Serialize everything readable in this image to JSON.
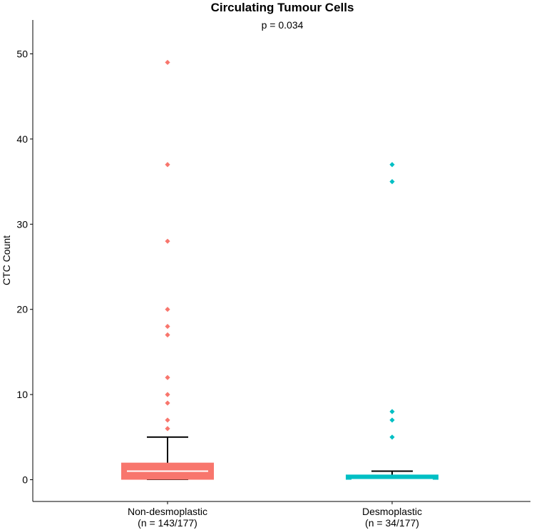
{
  "chart_data": {
    "type": "boxplot",
    "title": "Circulating Tumour Cells",
    "subtitle": "p =  0.034",
    "xlabel": "",
    "ylabel": "CTC Count",
    "ylim": [
      -2.5,
      54
    ],
    "yticks": [
      0,
      10,
      20,
      30,
      40,
      50
    ],
    "yticks_labels": [
      "0",
      "10",
      "20",
      "30",
      "40",
      "50"
    ],
    "categories": [
      {
        "name": "Non-desmoplastic",
        "sub": "(n = 143/177)"
      },
      {
        "name": "Desmoplastic",
        "sub": "(n = 34/177)"
      }
    ],
    "series": [
      {
        "name": "Non-desmoplastic",
        "color": "#F8766D",
        "whisker_low": 0,
        "q1": 0,
        "median": 1,
        "q3": 2,
        "whisker_high": 5,
        "outliers": [
          6,
          7,
          9,
          10,
          12,
          17,
          18,
          20,
          28,
          37,
          49
        ]
      },
      {
        "name": "Desmoplastic",
        "color": "#00BFC4",
        "whisker_low": 0,
        "q1": 0,
        "median": 0,
        "q3": 0.6,
        "whisker_high": 1,
        "outliers": [
          5,
          7,
          8,
          35,
          37
        ]
      }
    ]
  }
}
